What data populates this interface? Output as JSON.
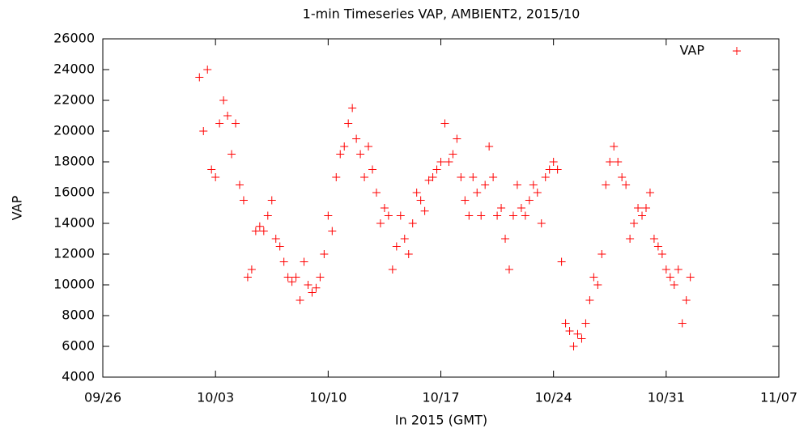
{
  "chart_data": {
    "type": "scatter",
    "title": "1-min Timeseries VAP, AMBIENT2, 2015/10",
    "xlabel": "In 2015 (GMT)",
    "ylabel": "VAP",
    "legend": "top-right",
    "series": [
      {
        "name": "VAP",
        "color": "#ff0000",
        "x": [
          "2015-10-02T00:00",
          "2015-10-02T06:00",
          "2015-10-02T12:00",
          "2015-10-02T18:00",
          "2015-10-03T00:00",
          "2015-10-03T06:00",
          "2015-10-03T12:00",
          "2015-10-03T18:00",
          "2015-10-04T00:00",
          "2015-10-04T06:00",
          "2015-10-04T12:00",
          "2015-10-04T18:00",
          "2015-10-05T00:00",
          "2015-10-05T06:00",
          "2015-10-05T12:00",
          "2015-10-05T18:00",
          "2015-10-06T00:00",
          "2015-10-06T06:00",
          "2015-10-06T12:00",
          "2015-10-06T18:00",
          "2015-10-07T00:00",
          "2015-10-07T06:00",
          "2015-10-07T12:00",
          "2015-10-07T18:00",
          "2015-10-08T00:00",
          "2015-10-08T06:00",
          "2015-10-08T12:00",
          "2015-10-08T18:00",
          "2015-10-09T00:00",
          "2015-10-09T06:00",
          "2015-10-09T12:00",
          "2015-10-09T18:00",
          "2015-10-10T00:00",
          "2015-10-10T06:00",
          "2015-10-10T12:00",
          "2015-10-10T18:00",
          "2015-10-11T00:00",
          "2015-10-11T06:00",
          "2015-10-11T12:00",
          "2015-10-11T18:00",
          "2015-10-12T00:00",
          "2015-10-12T06:00",
          "2015-10-12T12:00",
          "2015-10-12T18:00",
          "2015-10-13T00:00",
          "2015-10-13T06:00",
          "2015-10-13T12:00",
          "2015-10-13T18:00",
          "2015-10-14T00:00",
          "2015-10-14T06:00",
          "2015-10-14T12:00",
          "2015-10-14T18:00",
          "2015-10-15T00:00",
          "2015-10-15T06:00",
          "2015-10-15T12:00",
          "2015-10-15T18:00",
          "2015-10-16T00:00",
          "2015-10-16T06:00",
          "2015-10-16T12:00",
          "2015-10-16T18:00",
          "2015-10-17T00:00",
          "2015-10-17T06:00",
          "2015-10-17T12:00",
          "2015-10-17T18:00",
          "2015-10-18T00:00",
          "2015-10-18T06:00",
          "2015-10-18T12:00",
          "2015-10-18T18:00",
          "2015-10-19T00:00",
          "2015-10-19T06:00",
          "2015-10-19T12:00",
          "2015-10-19T18:00",
          "2015-10-20T00:00",
          "2015-10-20T06:00",
          "2015-10-20T12:00",
          "2015-10-20T18:00",
          "2015-10-21T00:00",
          "2015-10-21T06:00",
          "2015-10-21T12:00",
          "2015-10-21T18:00",
          "2015-10-22T00:00",
          "2015-10-22T06:00",
          "2015-10-22T12:00",
          "2015-10-22T18:00",
          "2015-10-23T00:00",
          "2015-10-23T06:00",
          "2015-10-23T12:00",
          "2015-10-23T18:00",
          "2015-10-24T00:00",
          "2015-10-24T06:00",
          "2015-10-24T12:00",
          "2015-10-24T18:00",
          "2015-10-25T00:00",
          "2015-10-25T06:00",
          "2015-10-25T12:00",
          "2015-10-25T18:00",
          "2015-10-26T00:00",
          "2015-10-26T06:00",
          "2015-10-26T12:00",
          "2015-10-26T18:00",
          "2015-10-27T00:00",
          "2015-10-27T06:00",
          "2015-10-27T12:00",
          "2015-10-27T18:00",
          "2015-10-28T00:00",
          "2015-10-28T06:00",
          "2015-10-28T12:00",
          "2015-10-28T18:00",
          "2015-10-29T00:00",
          "2015-10-29T06:00",
          "2015-10-29T12:00",
          "2015-10-29T18:00",
          "2015-10-30T00:00",
          "2015-10-30T06:00",
          "2015-10-30T12:00",
          "2015-10-30T18:00",
          "2015-10-31T00:00",
          "2015-10-31T06:00",
          "2015-10-31T12:00",
          "2015-10-31T18:00",
          "2015-11-01T00:00",
          "2015-11-01T06:00",
          "2015-11-01T12:00"
        ],
        "values": [
          23500,
          20000,
          24000,
          17500,
          17000,
          20500,
          22000,
          21000,
          18500,
          20500,
          16500,
          15500,
          10500,
          11000,
          13500,
          13800,
          13500,
          14500,
          15500,
          13000,
          12500,
          11500,
          10500,
          10200,
          10500,
          9000,
          11500,
          10000,
          9500,
          9800,
          10500,
          12000,
          14500,
          13500,
          17000,
          18500,
          19000,
          20500,
          21500,
          19500,
          18500,
          17000,
          19000,
          17500,
          16000,
          14000,
          15000,
          14500,
          11000,
          12500,
          14500,
          13000,
          12000,
          14000,
          16000,
          15500,
          14800,
          16800,
          17000,
          17500,
          18000,
          20500,
          18000,
          18500,
          19500,
          17000,
          15500,
          14500,
          17000,
          16000,
          14500,
          16500,
          19000,
          17000,
          14500,
          15000,
          13000,
          11000,
          14500,
          16500,
          15000,
          14500,
          15500,
          16500,
          16000,
          14000,
          17000,
          17500,
          18000,
          17500,
          11500,
          7500,
          7000,
          6000,
          6800,
          6500,
          7500,
          9000,
          10500,
          10000,
          12000,
          16500,
          18000,
          19000,
          18000,
          17000,
          16500,
          13000,
          14000,
          15000,
          14500,
          15000,
          16000,
          13000,
          12500,
          12000,
          11000,
          10500,
          10000,
          11000,
          7500,
          9000,
          10500
        ]
      }
    ],
    "xlim": [
      "2015-09-26",
      "2015-11-07"
    ],
    "xticks": [
      {
        "value": "2015-09-26",
        "label": "09/26"
      },
      {
        "value": "2015-10-03",
        "label": "10/03"
      },
      {
        "value": "2015-10-10",
        "label": "10/10"
      },
      {
        "value": "2015-10-17",
        "label": "10/17"
      },
      {
        "value": "2015-10-24",
        "label": "10/24"
      },
      {
        "value": "2015-10-31",
        "label": "10/31"
      },
      {
        "value": "2015-11-07",
        "label": "11/07"
      }
    ],
    "ylim": [
      4000,
      26000
    ],
    "yticks": [
      4000,
      6000,
      8000,
      10000,
      12000,
      14000,
      16000,
      18000,
      20000,
      22000,
      24000,
      26000
    ]
  }
}
